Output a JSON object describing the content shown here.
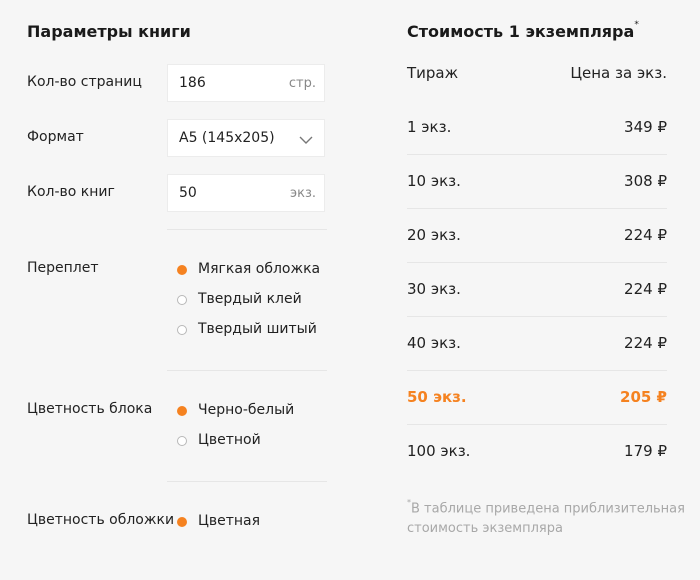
{
  "left": {
    "title": "Параметры книги",
    "pages": {
      "label": "Кол-во страниц",
      "value": "186",
      "unit": "стр."
    },
    "format": {
      "label": "Формат",
      "value": "А5 (145х205)"
    },
    "copies": {
      "label": "Кол-во книг",
      "value": "50",
      "unit": "экз."
    },
    "binding": {
      "label": "Переплет",
      "options": [
        {
          "label": "Мягкая обложка",
          "selected": true
        },
        {
          "label": "Твердый клей",
          "selected": false
        },
        {
          "label": "Твердый шитый",
          "selected": false
        }
      ]
    },
    "block_color": {
      "label": "Цветность блока",
      "options": [
        {
          "label": "Черно-белый",
          "selected": true
        },
        {
          "label": "Цветной",
          "selected": false
        }
      ]
    },
    "cover_color": {
      "label": "Цветность обложки",
      "options": [
        {
          "label": "Цветная",
          "selected": true
        }
      ]
    }
  },
  "right": {
    "title": "Стоимость 1 экземпляра",
    "title_mark": "*",
    "header": {
      "qty": "Тираж",
      "price": "Цена за экз."
    },
    "rows": [
      {
        "qty": "1 экз.",
        "price": "349 ₽"
      },
      {
        "qty": "10 экз.",
        "price": "308 ₽"
      },
      {
        "qty": "20 экз.",
        "price": "224 ₽"
      },
      {
        "qty": "30 экз.",
        "price": "224 ₽"
      },
      {
        "qty": "40 экз.",
        "price": "224 ₽"
      },
      {
        "qty": "50 экз.",
        "price": "205 ₽"
      },
      {
        "qty": "100 экз.",
        "price": "179 ₽"
      }
    ],
    "highlight_row": 5,
    "note_mark": "*",
    "note": "В таблице приведена приблизительная стоимость экземпляра"
  },
  "colors": {
    "accent": "#f58220",
    "background": "#f6f6f6",
    "divider": "#e6e6e6"
  }
}
